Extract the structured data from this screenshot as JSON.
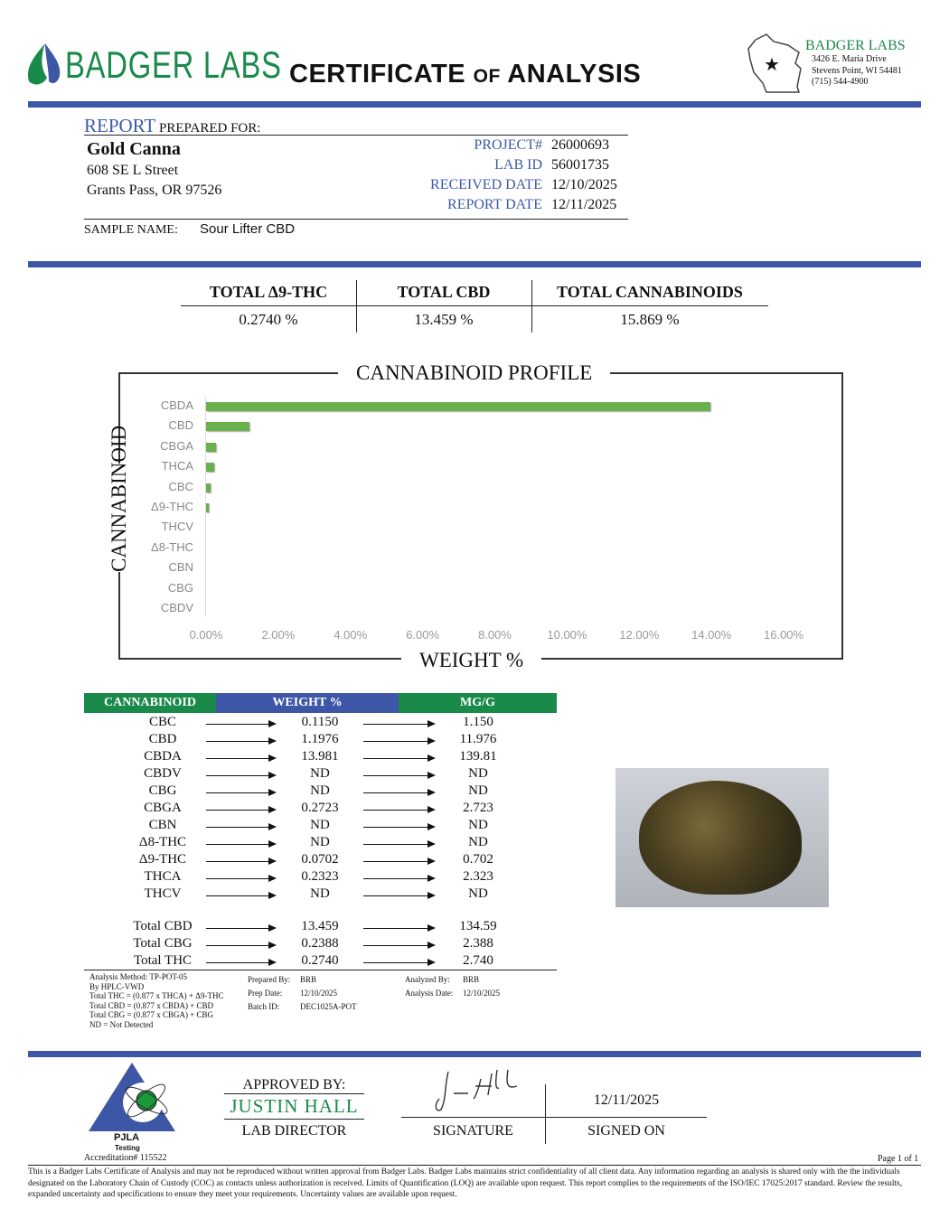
{
  "header": {
    "logo_text": "BADGER LABS",
    "title_main": "CERTIFICATE",
    "title_of": "OF",
    "title_end": "ANALYSIS",
    "lab_name": "BADGER LABS",
    "address1": "3426 E. Maria Drive",
    "address2": "Stevens Point, WI 54481",
    "phone": "(715) 544-4900"
  },
  "report": {
    "report_word": "REPORT",
    "prepared_for": "PREPARED FOR:",
    "client_name": "Gold Canna",
    "street": "608 SE L Street",
    "city": "Grants Pass, OR 97526",
    "fields": [
      {
        "label": "PROJECT#",
        "value": "26000693"
      },
      {
        "label": "LAB ID",
        "value": "56001735"
      },
      {
        "label": "RECEIVED DATE",
        "value": "12/10/2025"
      },
      {
        "label": "REPORT DATE",
        "value": "12/11/2025"
      }
    ],
    "sample_label": "SAMPLE NAME:",
    "sample_name": "Sour Lifter CBD"
  },
  "totals": [
    {
      "label": "TOTAL Δ9-THC",
      "value": "0.2740 %"
    },
    {
      "label": "TOTAL CBD",
      "value": "13.459 %"
    },
    {
      "label": "TOTAL CANNABINOIDS",
      "value": "15.869 %"
    }
  ],
  "chart_data": {
    "type": "bar",
    "orientation": "horizontal",
    "title": "CANNABINOID PROFILE",
    "xlabel": "WEIGHT %",
    "ylabel": "CANNABINOID",
    "categories": [
      "CBDA",
      "CBD",
      "CBGA",
      "THCA",
      "CBC",
      "Δ9-THC",
      "THCV",
      "Δ8-THC",
      "CBN",
      "CBG",
      "CBDV"
    ],
    "values": [
      13.981,
      1.1976,
      0.2723,
      0.2323,
      0.115,
      0.0702,
      0,
      0,
      0,
      0,
      0
    ],
    "xlim": [
      0,
      16
    ],
    "xticks": [
      "0.00%",
      "2.00%",
      "4.00%",
      "6.00%",
      "8.00%",
      "10.00%",
      "12.00%",
      "14.00%",
      "16.00%"
    ],
    "bar_color": "#6ab04c",
    "grid": false
  },
  "table": {
    "headers": [
      "CANNABINOID",
      "WEIGHT %",
      "MG/G"
    ],
    "header_colors": [
      "#1a8a4a",
      "#3d56a6",
      "#1a8a4a"
    ],
    "rows": [
      [
        "CBC",
        "0.1150",
        "1.150"
      ],
      [
        "CBD",
        "1.1976",
        "11.976"
      ],
      [
        "CBDA",
        "13.981",
        "139.81"
      ],
      [
        "CBDV",
        "ND",
        "ND"
      ],
      [
        "CBG",
        "ND",
        "ND"
      ],
      [
        "CBGA",
        "0.2723",
        "2.723"
      ],
      [
        "CBN",
        "ND",
        "ND"
      ],
      [
        "Δ8-THC",
        "ND",
        "ND"
      ],
      [
        "Δ9-THC",
        "0.0702",
        "0.702"
      ],
      [
        "THCA",
        "0.2323",
        "2.323"
      ],
      [
        "THCV",
        "ND",
        "ND"
      ]
    ],
    "total_rows": [
      [
        "Total CBD",
        "13.459",
        "134.59"
      ],
      [
        "Total CBG",
        "0.2388",
        "2.388"
      ],
      [
        "Total THC",
        "0.2740",
        "2.740"
      ]
    ]
  },
  "notes": {
    "method": [
      "Analysis Method: TP-POT-05",
      "By HPLC-VWD",
      "Total THC = (0.877 x  THCA) + Δ9-THC",
      "Total CBD = (0.877 x  CBDA) + CBD",
      "Total CBG = (0.877 x  CBGA) + CBG",
      "ND = Not Detected"
    ],
    "prep": [
      {
        "label": "Prepared By:",
        "value": "BRB"
      },
      {
        "label": "Prep Date:",
        "value": "12/10/2025"
      },
      {
        "label": "Batch ID:",
        "value": "DEC1025A-POT"
      }
    ],
    "analysis": [
      {
        "label": "Analyzed By:",
        "value": "BRB"
      },
      {
        "label": "Analysis Date:",
        "value": "12/10/2025"
      }
    ]
  },
  "approval": {
    "approved_by": "APPROVED BY:",
    "name": "JUSTIN HALL",
    "role": "LAB DIRECTOR",
    "signature_label": "SIGNATURE",
    "signed_on_label": "SIGNED ON",
    "signed_date": "12/11/2025",
    "signature": "J. Hall",
    "pjla": "PJLA",
    "pjla_testing": "Testing",
    "accreditation": "Accreditation# 115522"
  },
  "footer": {
    "page": "Page 1 of 1",
    "disclaimer": "This is a Badger Labs Certificate of Analysis and may not be reproduced without written approval from Badger Labs. Badger Labs maintains strict confidentiality of all client data. Any information regarding an analysis is shared only with the the individuals designated on the Laboratory Chain of Custody (COC) as contacts unless authorization is received. Limits of Quantification (LOQ) are available upon request. This report complies to the requirements of the ISO/IEC 17025:2017 standard. Review the results, expanded uncertainty and specifications to ensure they meet your requirements. Uncertainty values are available upon request."
  }
}
